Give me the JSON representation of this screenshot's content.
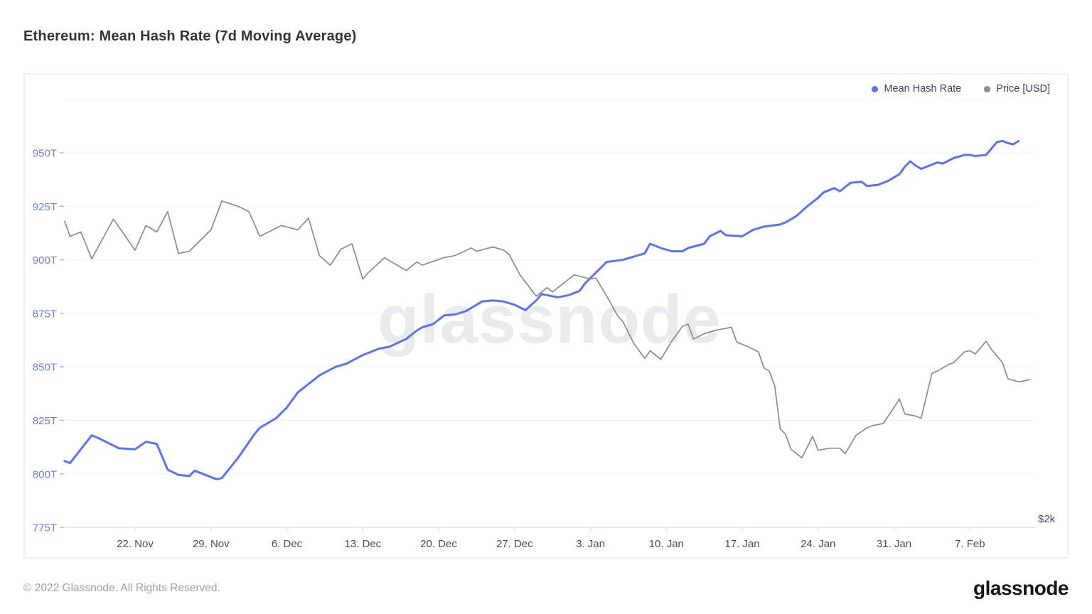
{
  "page": {
    "title": "Ethereum: Mean Hash Rate (7d Moving Average)",
    "watermark": "glassnode",
    "footer_left": "© 2022 Glassnode. All Rights Reserved.",
    "footer_logo": "glassnode"
  },
  "legend": [
    {
      "label": "Mean Hash Rate",
      "color": "#5d73e7"
    },
    {
      "label": "Price [USD]",
      "color": "#8b8b8b"
    }
  ],
  "chart_data": {
    "type": "line",
    "title": "Ethereum: Mean Hash Rate (7d Moving Average)",
    "grid": true,
    "legend_position": "top-right",
    "x_axis": {
      "unit": "date",
      "day_zero_label": "15. Nov",
      "tick_values": [
        7,
        14,
        21,
        28,
        35,
        42,
        49,
        56,
        63,
        70,
        77,
        84
      ],
      "tick_labels": [
        "22. Nov",
        "29. Nov",
        "6. Dec",
        "13. Dec",
        "20. Dec",
        "27. Dec",
        "3. Jan",
        "10. Jan",
        "17. Jan",
        "24. Jan",
        "31. Jan",
        "7. Feb"
      ],
      "range_days": [
        0,
        90
      ]
    },
    "y_axis_left": {
      "name": "Mean Hash Rate",
      "unit": "T (hash/s)",
      "tick_values": [
        950,
        925,
        900,
        875,
        850,
        825,
        800,
        775
      ],
      "tick_labels": [
        "950T",
        "925T",
        "900T",
        "875T",
        "850T",
        "825T",
        "800T",
        "775T"
      ],
      "grid_values": [
        975,
        950,
        925,
        900,
        875,
        850,
        825,
        800,
        775
      ],
      "range": [
        775,
        975
      ],
      "label_color": "#6b7ce0"
    },
    "y_axis_right": {
      "name": "Price [USD]",
      "visible_tick_label": "$2k",
      "visible_tick_value_on_left_scale": 779
    },
    "series": [
      {
        "name": "Mean Hash Rate",
        "color": "#5d73e7",
        "axis": "left",
        "unit": "T",
        "points": [
          [
            0.5,
            806
          ],
          [
            1,
            805
          ],
          [
            3,
            818
          ],
          [
            3.5,
            817
          ],
          [
            5.5,
            812
          ],
          [
            7,
            811.5
          ],
          [
            8,
            815
          ],
          [
            9,
            814
          ],
          [
            10,
            802
          ],
          [
            11,
            799.5
          ],
          [
            12,
            799
          ],
          [
            12.5,
            801.5
          ],
          [
            13.5,
            799.5
          ],
          [
            14.5,
            797.5
          ],
          [
            15,
            798
          ],
          [
            16.5,
            807.5
          ],
          [
            18,
            818.5
          ],
          [
            18.5,
            821.5
          ],
          [
            20,
            826
          ],
          [
            21,
            831
          ],
          [
            22,
            838
          ],
          [
            23.5,
            844
          ],
          [
            24,
            846
          ],
          [
            25.5,
            850
          ],
          [
            26.5,
            851.5
          ],
          [
            28,
            855.5
          ],
          [
            29.5,
            858.5
          ],
          [
            30.5,
            859.5
          ],
          [
            32,
            863
          ],
          [
            33,
            867
          ],
          [
            33.5,
            868.5
          ],
          [
            34.5,
            870
          ],
          [
            35.5,
            874
          ],
          [
            36.5,
            874.5
          ],
          [
            37.5,
            876
          ],
          [
            39,
            880.5
          ],
          [
            40,
            881
          ],
          [
            41,
            880.5
          ],
          [
            42,
            879
          ],
          [
            43,
            876.5
          ],
          [
            44,
            881
          ],
          [
            44.5,
            884
          ],
          [
            45.5,
            883
          ],
          [
            46,
            882.5
          ],
          [
            47,
            883.5
          ],
          [
            48,
            885.5
          ],
          [
            48.5,
            889
          ],
          [
            49.5,
            894
          ],
          [
            50.5,
            899
          ],
          [
            52,
            900
          ],
          [
            53,
            901.5
          ],
          [
            54,
            903
          ],
          [
            54.5,
            907.5
          ],
          [
            55.5,
            905.5
          ],
          [
            56.5,
            904
          ],
          [
            57.5,
            904
          ],
          [
            58,
            905.5
          ],
          [
            59.5,
            907.5
          ],
          [
            60,
            911
          ],
          [
            61,
            913.5
          ],
          [
            61.5,
            911.5
          ],
          [
            63,
            911
          ],
          [
            64,
            914
          ],
          [
            65,
            915.5
          ],
          [
            66.5,
            916.5
          ],
          [
            67,
            917.5
          ],
          [
            68,
            920.5
          ],
          [
            69,
            925
          ],
          [
            70,
            929
          ],
          [
            70.5,
            931.5
          ],
          [
            71.5,
            933.5
          ],
          [
            72,
            932
          ],
          [
            73,
            936
          ],
          [
            74,
            936.5
          ],
          [
            74.5,
            934.5
          ],
          [
            75.5,
            935
          ],
          [
            76.5,
            937
          ],
          [
            77.5,
            940
          ],
          [
            78,
            943.5
          ],
          [
            78.5,
            946
          ],
          [
            79,
            944
          ],
          [
            79.5,
            942.5
          ],
          [
            80.5,
            944.5
          ],
          [
            81,
            945.5
          ],
          [
            81.5,
            945
          ],
          [
            82.5,
            947.5
          ],
          [
            83.5,
            949
          ],
          [
            84,
            949
          ],
          [
            84.5,
            948.5
          ],
          [
            85.5,
            949
          ],
          [
            86.5,
            955
          ],
          [
            87,
            955.5
          ],
          [
            87.5,
            954.5
          ],
          [
            88,
            954
          ],
          [
            88.5,
            955.5
          ]
        ]
      },
      {
        "name": "Price [USD]",
        "color": "#8b8b8b",
        "axis": "right",
        "unit": "USD (plotted on hidden price axis; only the $2k gridline label is visible)",
        "points_note": "values are the plotted positions expressed on the left axis display scale (T)",
        "points": [
          [
            0.5,
            918
          ],
          [
            1,
            911
          ],
          [
            2,
            913
          ],
          [
            3,
            900.5
          ],
          [
            5,
            919
          ],
          [
            7,
            904.5
          ],
          [
            8,
            916
          ],
          [
            9,
            913
          ],
          [
            10,
            922.5
          ],
          [
            11,
            903
          ],
          [
            12,
            904
          ],
          [
            14,
            914
          ],
          [
            15,
            927.5
          ],
          [
            16.5,
            925
          ],
          [
            17.5,
            922.5
          ],
          [
            18.5,
            911
          ],
          [
            20.5,
            916
          ],
          [
            22,
            914
          ],
          [
            23,
            919.5
          ],
          [
            24,
            902
          ],
          [
            25,
            897.5
          ],
          [
            26,
            905
          ],
          [
            27,
            907.5
          ],
          [
            28,
            891
          ],
          [
            28.5,
            894
          ],
          [
            30,
            901
          ],
          [
            32,
            895
          ],
          [
            33,
            899
          ],
          [
            33.5,
            897.5
          ],
          [
            35.5,
            901
          ],
          [
            36.5,
            902
          ],
          [
            38,
            905.5
          ],
          [
            38.5,
            904
          ],
          [
            40,
            906
          ],
          [
            41,
            904.5
          ],
          [
            41.5,
            902.5
          ],
          [
            42.5,
            893
          ],
          [
            44,
            883
          ],
          [
            45,
            887
          ],
          [
            45.5,
            885
          ],
          [
            47,
            891
          ],
          [
            47.5,
            893
          ],
          [
            49,
            891
          ],
          [
            49.5,
            891.5
          ],
          [
            50.5,
            883
          ],
          [
            51.5,
            874
          ],
          [
            52,
            871
          ],
          [
            53,
            861
          ],
          [
            54,
            854
          ],
          [
            54.5,
            857.5
          ],
          [
            55.5,
            853.5
          ],
          [
            56.5,
            862
          ],
          [
            57.5,
            869
          ],
          [
            58,
            870
          ],
          [
            58.5,
            863
          ],
          [
            59.5,
            865.5
          ],
          [
            60.5,
            867
          ],
          [
            62,
            868.5
          ],
          [
            62.5,
            861.5
          ],
          [
            63.5,
            859.5
          ],
          [
            64.5,
            857
          ],
          [
            65,
            849.5
          ],
          [
            65.5,
            848
          ],
          [
            66,
            841
          ],
          [
            66.5,
            821
          ],
          [
            67,
            818.5
          ],
          [
            67.5,
            811.5
          ],
          [
            68.5,
            807.5
          ],
          [
            69,
            812.5
          ],
          [
            69.5,
            817.5
          ],
          [
            70,
            811
          ],
          [
            71,
            812
          ],
          [
            72,
            812
          ],
          [
            72.5,
            809.5
          ],
          [
            73.5,
            818
          ],
          [
            74.5,
            821.5
          ],
          [
            75,
            822.5
          ],
          [
            76,
            823.5
          ],
          [
            77,
            831
          ],
          [
            77.5,
            835
          ],
          [
            78,
            828
          ],
          [
            79,
            827
          ],
          [
            79.5,
            826
          ],
          [
            80.5,
            847
          ],
          [
            81,
            848
          ],
          [
            82,
            851
          ],
          [
            82.5,
            852
          ],
          [
            83.5,
            857
          ],
          [
            84,
            857.5
          ],
          [
            84.5,
            856
          ],
          [
            85.5,
            862
          ],
          [
            86,
            858
          ],
          [
            87,
            852
          ],
          [
            87.5,
            844.5
          ],
          [
            88.5,
            843
          ],
          [
            89,
            843.5
          ],
          [
            89.5,
            844
          ]
        ]
      }
    ]
  },
  "style": {
    "grid_color": "#f1f2f4",
    "baseline_color": "#e4e5e8",
    "x_label_color": "#464d5c",
    "y_tick_stub_color": "#aab4ea",
    "x_tick_stub_color": "#d9dadd"
  }
}
